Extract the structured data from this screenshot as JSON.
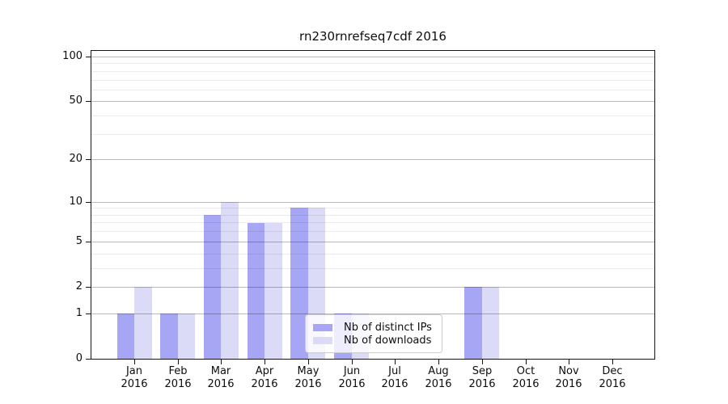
{
  "chart_data": {
    "type": "bar",
    "title": "rn230rnrefseq7cdf 2016",
    "yscale": "log1p",
    "ylim": [
      0,
      100
    ],
    "grid": "horizontal",
    "legend_position": "lower-center-inside-plot",
    "categories": [
      {
        "line1": "Jan",
        "line2": "2016"
      },
      {
        "line1": "Feb",
        "line2": "2016"
      },
      {
        "line1": "Mar",
        "line2": "2016"
      },
      {
        "line1": "Apr",
        "line2": "2016"
      },
      {
        "line1": "May",
        "line2": "2016"
      },
      {
        "line1": "Jun",
        "line2": "2016"
      },
      {
        "line1": "Jul",
        "line2": "2016"
      },
      {
        "line1": "Aug",
        "line2": "2016"
      },
      {
        "line1": "Sep",
        "line2": "2016"
      },
      {
        "line1": "Oct",
        "line2": "2016"
      },
      {
        "line1": "Nov",
        "line2": "2016"
      },
      {
        "line1": "Dec",
        "line2": "2016"
      }
    ],
    "y_ticks": [
      {
        "label": "0",
        "value": 0
      },
      {
        "label": "1",
        "value": 1
      },
      {
        "label": "2",
        "value": 2
      },
      {
        "label": "5",
        "value": 5
      },
      {
        "label": "10",
        "value": 10
      },
      {
        "label": "20",
        "value": 20
      },
      {
        "label": "50",
        "value": 50
      },
      {
        "label": "100",
        "value": 100
      }
    ],
    "minor_grid_values": [
      3,
      4,
      6,
      7,
      8,
      9,
      30,
      40,
      60,
      70,
      80,
      90
    ],
    "major_grid_values": [
      1,
      2,
      5,
      10,
      20,
      50,
      100
    ],
    "series": [
      {
        "name": "Nb of distinct IPs",
        "color": "#a6a6f5",
        "values": [
          1,
          1,
          8,
          7,
          9,
          1,
          0,
          0,
          2,
          0,
          0,
          0
        ]
      },
      {
        "name": "Nb of downloads",
        "color": "#dbdbf8",
        "values": [
          2,
          1,
          10,
          7,
          9,
          1,
          0,
          0,
          2,
          0,
          0,
          0
        ]
      }
    ]
  }
}
